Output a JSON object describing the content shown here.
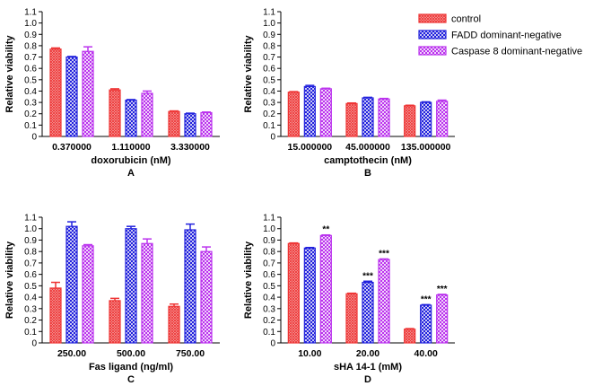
{
  "legend": [
    {
      "name": "control",
      "color": "#ee3333",
      "pattern": "dense-cross"
    },
    {
      "name": "FADD dominant-negative",
      "color": "#2222dd",
      "pattern": "checker"
    },
    {
      "name": "Caspase 8  dominant-negative",
      "color": "#bb33ee",
      "pattern": "checker"
    }
  ],
  "chart_data": [
    {
      "type": "bar",
      "panel_letter": "A",
      "xlabel": "doxorubicin (nM)",
      "ylabel": "Relative viability",
      "ylim": [
        0,
        1.1
      ],
      "yticks": [
        "0",
        "0.1",
        "0.2",
        "0.3",
        "0.4",
        "0.5",
        "0.6",
        "0.7",
        "0.8",
        "0.9",
        "1.0",
        "1.1"
      ],
      "categories": [
        "0.370000",
        "1.110000",
        "3.330000"
      ],
      "series": [
        {
          "name": "control",
          "values": [
            0.77,
            0.41,
            0.22
          ],
          "errors": [
            0.01,
            0.01,
            0.005
          ]
        },
        {
          "name": "FADD dominant-negative",
          "values": [
            0.7,
            0.32,
            0.2
          ],
          "errors": [
            0.005,
            0.005,
            0.005
          ]
        },
        {
          "name": "Caspase 8  dominant-negative",
          "values": [
            0.75,
            0.38,
            0.21
          ],
          "errors": [
            0.04,
            0.02,
            0.005
          ]
        }
      ],
      "significance": [
        [
          "",
          "",
          ""
        ],
        [
          "",
          "",
          ""
        ],
        [
          "",
          "",
          ""
        ]
      ]
    },
    {
      "type": "bar",
      "panel_letter": "B",
      "xlabel": "camptothecin (nM)",
      "ylabel": "Relative viability",
      "ylim": [
        0,
        1.1
      ],
      "yticks": [
        "0",
        "0.1",
        "0.2",
        "0.3",
        "0.4",
        "0.5",
        "0.6",
        "0.7",
        "0.8",
        "0.9",
        "1.0",
        "1.1"
      ],
      "categories": [
        "15.000000",
        "45.000000",
        "135.000000"
      ],
      "series": [
        {
          "name": "control",
          "values": [
            0.39,
            0.29,
            0.27
          ],
          "errors": [
            0.005,
            0.005,
            0.005
          ]
        },
        {
          "name": "FADD dominant-negative",
          "values": [
            0.44,
            0.34,
            0.3
          ],
          "errors": [
            0.01,
            0.005,
            0.005
          ]
        },
        {
          "name": "Caspase 8  dominant-negative",
          "values": [
            0.42,
            0.33,
            0.31
          ],
          "errors": [
            0.005,
            0.005,
            0.01
          ]
        }
      ],
      "significance": [
        [
          "",
          "",
          ""
        ],
        [
          "",
          "",
          ""
        ],
        [
          "",
          "",
          ""
        ]
      ]
    },
    {
      "type": "bar",
      "panel_letter": "C",
      "xlabel": "Fas ligand (ng/ml)",
      "ylabel": "Relative viability",
      "ylim": [
        0,
        1.1
      ],
      "yticks": [
        "0",
        "0.1",
        "0.2",
        "0.3",
        "0.4",
        "0.5",
        "0.6",
        "0.7",
        "0.8",
        "0.9",
        "1.0",
        "1.1"
      ],
      "categories": [
        "250.00",
        "500.00",
        "750.00"
      ],
      "series": [
        {
          "name": "control",
          "values": [
            0.48,
            0.37,
            0.32
          ],
          "errors": [
            0.05,
            0.02,
            0.02
          ]
        },
        {
          "name": "FADD dominant-negative",
          "values": [
            1.02,
            1.0,
            0.99
          ],
          "errors": [
            0.04,
            0.02,
            0.05
          ]
        },
        {
          "name": "Caspase 8  dominant-negative",
          "values": [
            0.85,
            0.87,
            0.8
          ],
          "errors": [
            0.01,
            0.04,
            0.04
          ]
        }
      ],
      "significance": [
        [
          "",
          "",
          ""
        ],
        [
          "",
          "",
          ""
        ],
        [
          "",
          "",
          ""
        ]
      ]
    },
    {
      "type": "bar",
      "panel_letter": "D",
      "xlabel": "sHA 14-1 (mM)",
      "ylabel": "Relative viability",
      "ylim": [
        0,
        1.1
      ],
      "yticks": [
        "0",
        "0.1",
        "0.2",
        "0.3",
        "0.4",
        "0.5",
        "0.6",
        "0.7",
        "0.8",
        "0.9",
        "1.0",
        "1.1"
      ],
      "categories": [
        "10.00",
        "20.00",
        "40.00"
      ],
      "series": [
        {
          "name": "control",
          "values": [
            0.87,
            0.43,
            0.12
          ],
          "errors": [
            0.005,
            0.005,
            0.005
          ]
        },
        {
          "name": "FADD dominant-negative",
          "values": [
            0.83,
            0.53,
            0.33
          ],
          "errors": [
            0.005,
            0.01,
            0.005
          ]
        },
        {
          "name": "Caspase 8  dominant-negative",
          "values": [
            0.94,
            0.73,
            0.42
          ],
          "errors": [
            0.005,
            0.005,
            0.005
          ]
        }
      ],
      "significance": [
        [
          "",
          "",
          ""
        ],
        [
          "",
          "***",
          "***"
        ],
        [
          "**",
          "***",
          "***"
        ]
      ]
    }
  ]
}
